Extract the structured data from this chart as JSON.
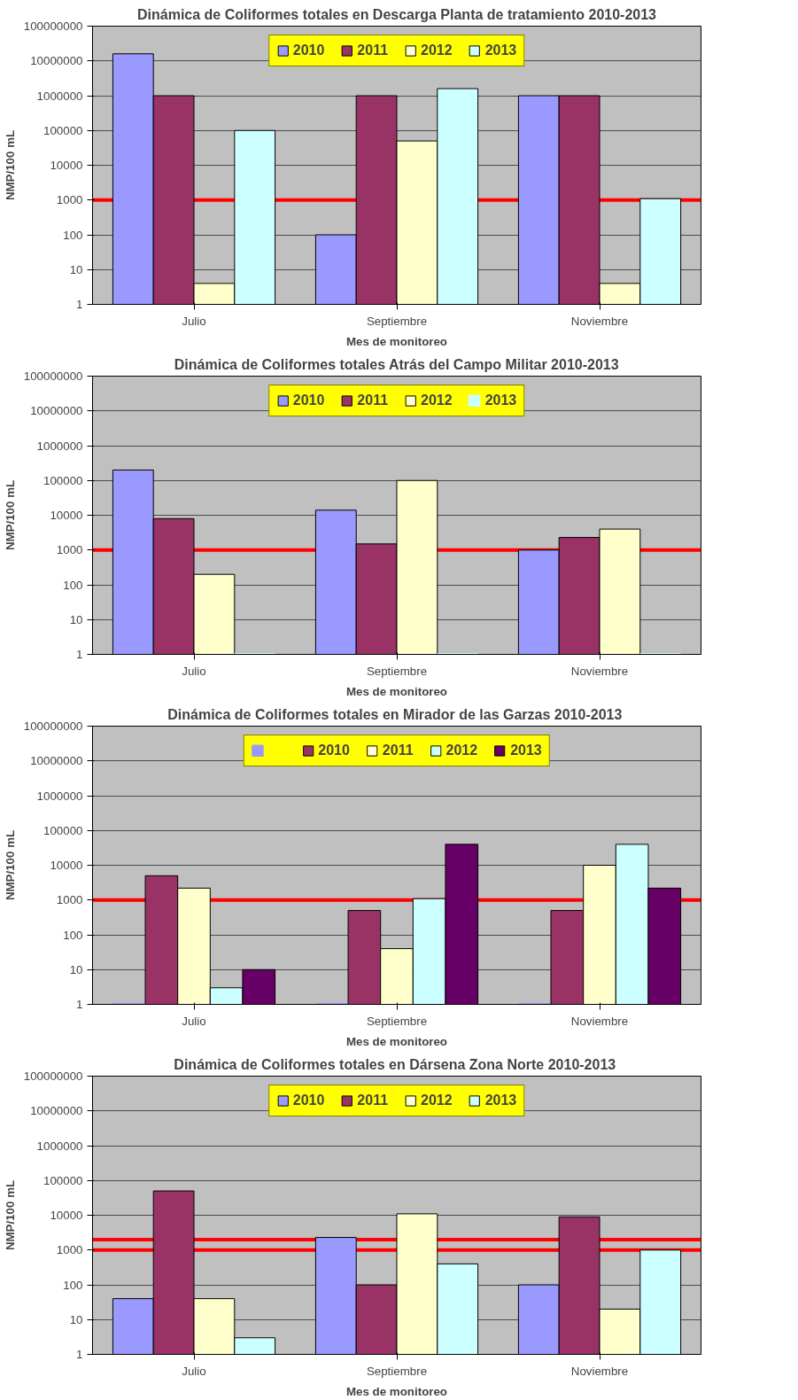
{
  "chart_data": [
    {
      "type": "bar",
      "title": "Dinámica de Coliformes totales en Descarga Planta de tratamiento 2010-2013",
      "xlabel": "Mes de monitoreo",
      "ylabel": "NMP/100 mL",
      "categories": [
        "Julio",
        "Septiembre",
        "Noviembre"
      ],
      "log": true,
      "ylim": [
        1,
        100000000
      ],
      "yticks": [
        1,
        10,
        100,
        1000,
        10000,
        100000,
        1000000,
        10000000,
        100000000
      ],
      "grid": "y",
      "legend": "top",
      "series": [
        {
          "name": "2010",
          "color": "#9999ff",
          "values": [
            16000000,
            100,
            1000000
          ]
        },
        {
          "name": "2011",
          "color": "#993366",
          "values": [
            1000000,
            1000000,
            1000000
          ]
        },
        {
          "name": "2012",
          "color": "#ffffcc",
          "values": [
            4,
            50000,
            4
          ]
        },
        {
          "name": "2013",
          "color": "#ccffff",
          "values": [
            100000,
            1600000,
            1100
          ]
        }
      ],
      "ref_lines": [
        {
          "axis": "y",
          "value": 1000,
          "color": "#ff0000"
        }
      ]
    },
    {
      "type": "bar",
      "title": "Dinámica de Coliformes totales Atrás del Campo Militar 2010-2013",
      "xlabel": "Mes de monitoreo",
      "ylabel": "NMP/100 mL",
      "categories": [
        "Julio",
        "Septiembre",
        "Noviembre"
      ],
      "log": true,
      "ylim": [
        1,
        100000000
      ],
      "yticks": [
        1,
        10,
        100,
        1000,
        10000,
        100000,
        1000000,
        10000000,
        100000000
      ],
      "grid": "y",
      "legend": "top",
      "series": [
        {
          "name": "2010",
          "color": "#9999ff",
          "values": [
            200000,
            14000,
            1000
          ]
        },
        {
          "name": "2011",
          "color": "#993366",
          "values": [
            8000,
            1500,
            2300
          ]
        },
        {
          "name": "2012",
          "color": "#ffffcc",
          "values": [
            200,
            100000,
            4000
          ]
        },
        {
          "name": "2013",
          "color": "#ccffff",
          "values": [
            1,
            1,
            1
          ]
        }
      ],
      "ref_lines": [
        {
          "axis": "y",
          "value": 1000,
          "color": "#ff0000"
        }
      ]
    },
    {
      "type": "bar",
      "title": "Dinámica de Coliformes totales en Mirador de las Garzas  2010-2013",
      "xlabel": "Mes de monitoreo",
      "ylabel": "NMP/100 mL",
      "categories": [
        "Julio",
        "Septiembre",
        "Noviembre"
      ],
      "log": true,
      "ylim": [
        1,
        100000000
      ],
      "yticks": [
        1,
        10,
        100,
        1000,
        10000,
        100000,
        1000000,
        10000000,
        100000000
      ],
      "grid": "y",
      "legend": "top",
      "series": [
        {
          "color": "#9999ff",
          "values": [
            1,
            1,
            1
          ]
        },
        {
          "name": "2010",
          "color": "#993366",
          "values": [
            5000,
            500,
            500
          ]
        },
        {
          "name": "2011",
          "color": "#ffffcc",
          "values": [
            2200,
            40,
            10000
          ]
        },
        {
          "name": "2012",
          "color": "#ccffff",
          "values": [
            3,
            1100,
            40000
          ]
        },
        {
          "name": "2013",
          "color": "#660066",
          "values": [
            10,
            40000,
            2200
          ]
        }
      ],
      "ref_lines": [
        {
          "axis": "y",
          "value": 1000,
          "color": "#ff0000"
        }
      ]
    },
    {
      "type": "bar",
      "title": "Dinámica de Coliformes totales en Dársena Zona Norte  2010-2013",
      "xlabel": "Mes de monitoreo",
      "ylabel": "NMP/100 mL",
      "categories": [
        "Julio",
        "Septiembre",
        "Noviembre"
      ],
      "log": true,
      "ylim": [
        1,
        100000000
      ],
      "yticks": [
        1,
        10,
        100,
        1000,
        10000,
        100000,
        1000000,
        10000000,
        100000000
      ],
      "grid": "y",
      "legend": "top",
      "series": [
        {
          "name": "2010",
          "color": "#9999ff",
          "values": [
            40,
            2300,
            100
          ]
        },
        {
          "name": "2011",
          "color": "#993366",
          "values": [
            50000,
            100,
            9000
          ]
        },
        {
          "name": "2012",
          "color": "#ffffcc",
          "values": [
            40,
            11000,
            20
          ]
        },
        {
          "name": "2013",
          "color": "#ccffff",
          "values": [
            3,
            400,
            1000
          ]
        }
      ],
      "ref_lines": [
        {
          "axis": "y",
          "value": 1000,
          "color": "#ff0000"
        },
        {
          "axis": "y",
          "value": 2000,
          "color": "#ff0000"
        }
      ]
    }
  ]
}
